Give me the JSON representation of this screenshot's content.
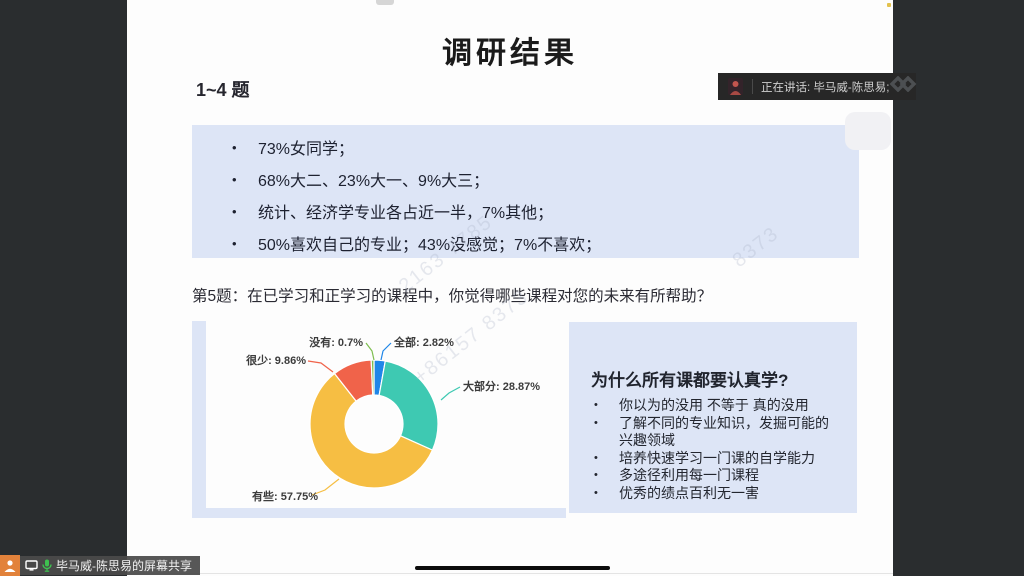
{
  "colors": {
    "app_bg": "#2a2d2f",
    "slide_bg": "#fdfdfd",
    "panel_bg": "#dde5f6",
    "accent_orange": "#e2823b",
    "mic_green": "#3ec14f",
    "banner_bg": "#272727"
  },
  "overlays": {
    "speaking_banner": {
      "label": "正在讲话: 毕马威-陈思易;",
      "speaker_icon": "person-avatar",
      "logo_icon": "meeting-logo"
    },
    "share_badge": {
      "label": "毕马威-陈思易的屏幕共享",
      "icons": [
        "presenter-icon",
        "monitor-icon",
        "mic-icon"
      ]
    }
  },
  "slide": {
    "title": "调研结果",
    "section_label": "1~4 题",
    "summary_bullets": [
      "73%女同学；",
      "68%大二、23%大一、9%大三；",
      "统计、经济学专业各占近一半，7%其他；",
      "50%喜欢自己的专业；43%没感觉；7%不喜欢；"
    ],
    "question": "第5题：在已学习和正学习的课程中，你觉得哪些课程对您的未来有所帮助？",
    "reasons": {
      "title": "为什么所有课都要认真学?",
      "bullets": [
        "你以为的没用 不等于 真的没用",
        "了解不同的专业知识，发掘可能的兴趣领域",
        "培养快速学习一门课的自学能力",
        "多途径利用每一门课程",
        "优秀的绩点百利无一害"
      ]
    }
  },
  "chart_data": {
    "type": "pie",
    "donut": true,
    "title": "",
    "labels": [
      "全部",
      "大部分",
      "有些",
      "很少",
      "没有"
    ],
    "values": [
      2.82,
      28.87,
      57.75,
      9.86,
      0.7
    ],
    "unit": "%",
    "colors": [
      "#1f86e8",
      "#3ec9b2",
      "#f6be43",
      "#f0634a",
      "#7ebe50"
    ],
    "label_format": "{name}: {value}%",
    "legend": "none",
    "start_angle_deg": -90,
    "direction": "clockwise"
  },
  "watermarks": [
    "2163 7785",
    "+86157 8373",
    "8373"
  ]
}
